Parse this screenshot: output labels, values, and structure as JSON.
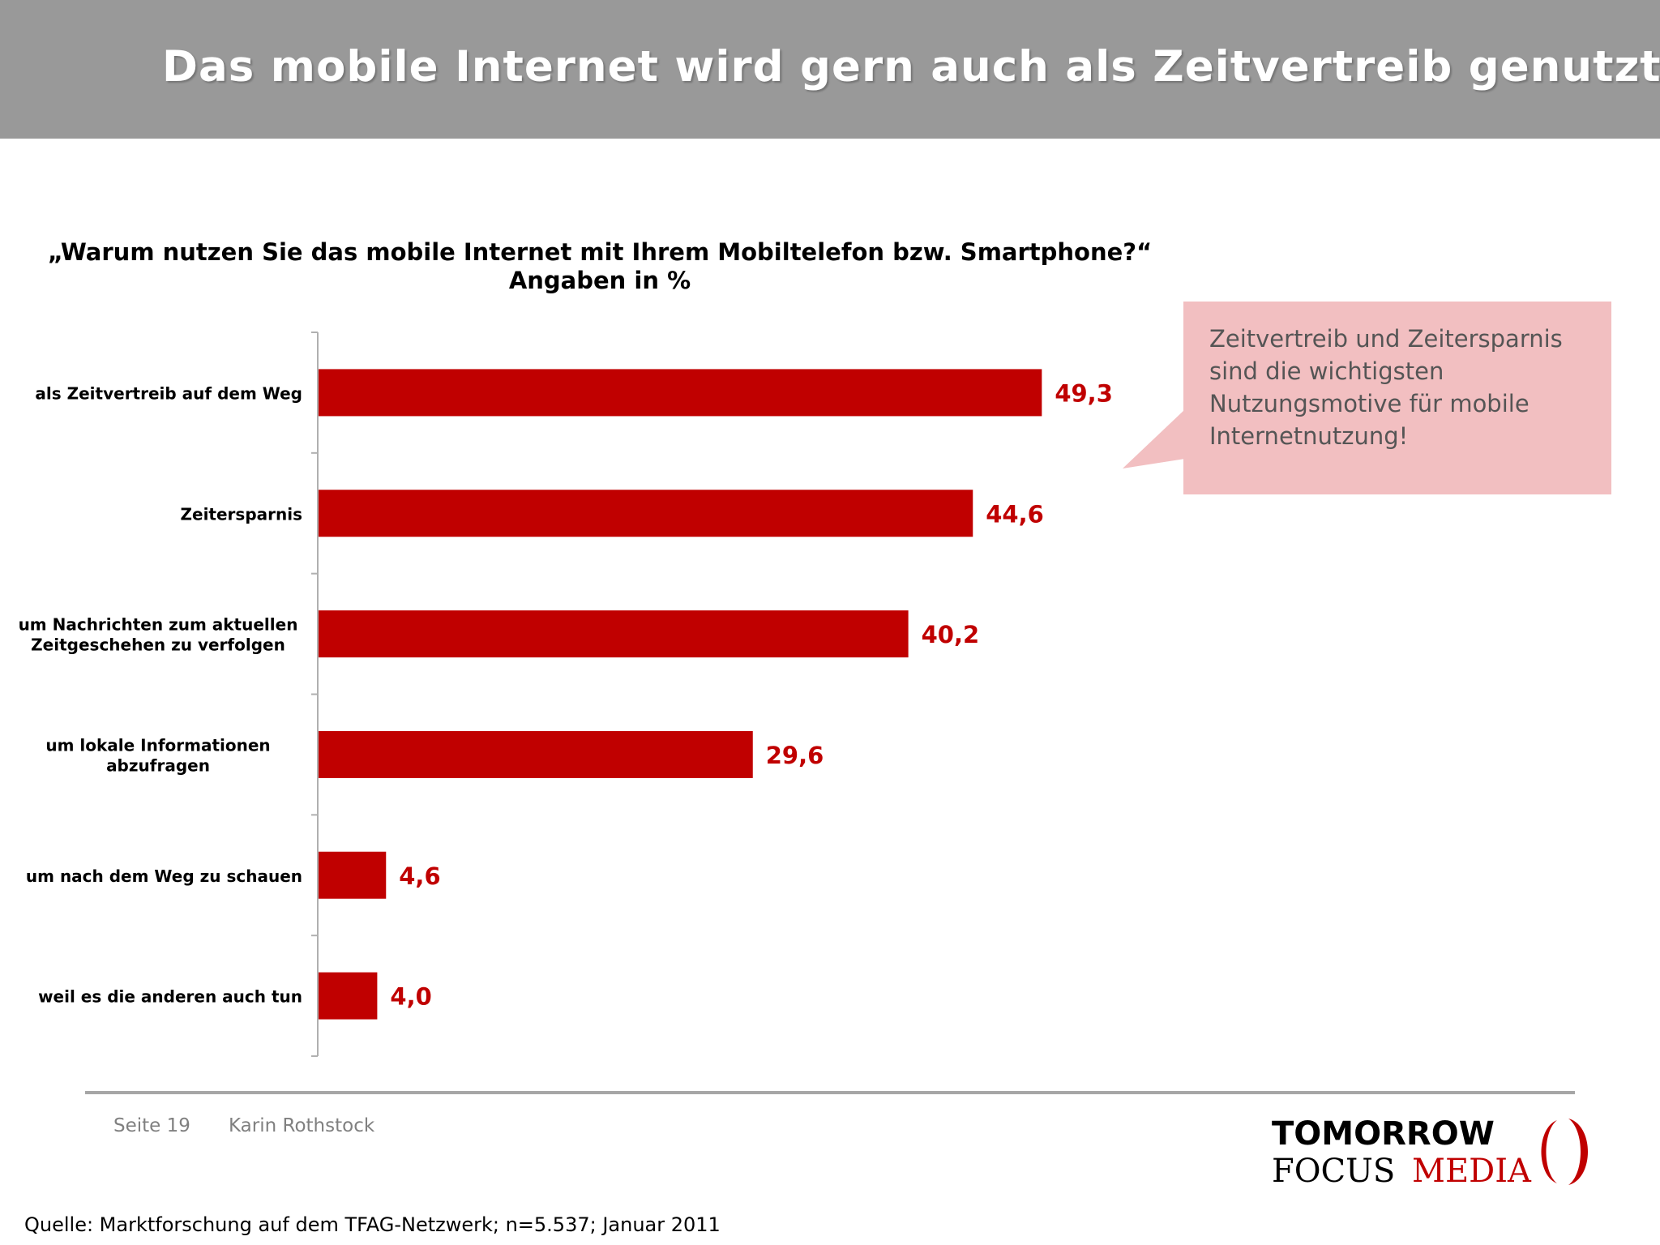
{
  "header": {
    "title": "Das mobile Internet wird gern auch als Zeitvertreib genutzt"
  },
  "chart_data": {
    "type": "bar",
    "orientation": "horizontal",
    "title": "„Warum nutzen Sie das mobile Internet mit Ihrem Mobiltelefon bzw. Smartphone?“",
    "subtitle": "Angaben in %",
    "categories": [
      "als Zeitvertreib auf dem Weg",
      "Zeitersparnis",
      "um Nachrichten zum aktuellen Zeitgeschehen zu verfolgen",
      "um lokale Informationen abzufragen",
      "um nach dem Weg zu schauen",
      "weil es die anderen auch tun"
    ],
    "values": [
      49.3,
      44.6,
      40.2,
      29.6,
      4.6,
      4.0
    ],
    "value_labels": [
      "49,3",
      "44,6",
      "40,2",
      "29,6",
      "4,6",
      "4,0"
    ],
    "category_lines": [
      [
        "als Zeitvertreib auf dem Weg"
      ],
      [
        "Zeitersparnis"
      ],
      [
        "um Nachrichten zum aktuellen",
        "Zeitgeschehen zu verfolgen"
      ],
      [
        "um lokale Informationen",
        "abzufragen"
      ],
      [
        "um nach dem Weg zu schauen"
      ],
      [
        "weil es die anderen auch tun"
      ]
    ],
    "xlim": [
      0,
      50
    ],
    "grid": false,
    "bar_color": "#c00000",
    "label_color": "#c00000"
  },
  "callout": {
    "lines": [
      "Zeitvertreib und Zeitersparnis",
      "sind die wichtigsten",
      "Nutzungsmotive für mobile",
      "Internetnutzung!"
    ],
    "background": "#f2bfc1"
  },
  "footer": {
    "page": "Seite 19",
    "author": "Karin Rothstock",
    "source": "Quelle: Marktforschung auf dem TFAG-Netzwerk; n=5.537; Januar 2011"
  },
  "logo": {
    "line1": "TOMORROW",
    "line2_a": "FOCUS",
    "line2_b": "MEDIA",
    "mark_color": "#c00000"
  }
}
